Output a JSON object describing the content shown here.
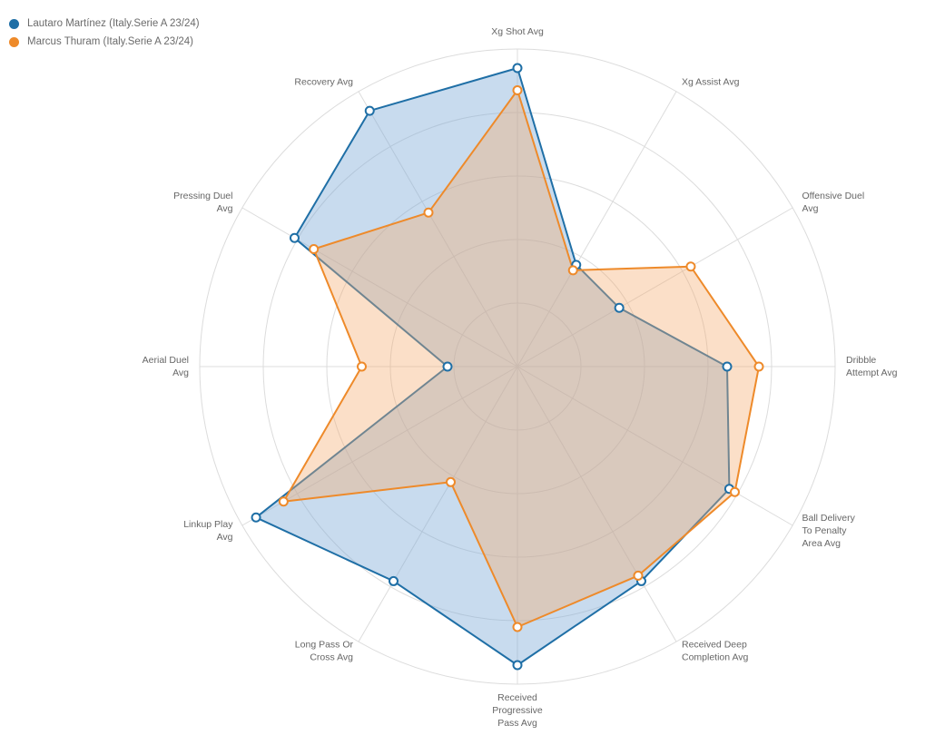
{
  "chart_data": {
    "type": "radar",
    "title": "",
    "axes": [
      "Xg Shot Avg",
      "Xg Assist Avg",
      "Offensive Duel Avg",
      "Dribble Attempt Avg",
      "Ball Delivery To Penalty Area Avg",
      "Received Deep Completion Avg",
      "Received Progressive Pass Avg",
      "Long Pass Or Cross Avg",
      "Linkup Play Avg",
      "Aerial Duel Avg",
      "Pressing Duel Avg",
      "Recovery Avg"
    ],
    "axis_label_lines": [
      [
        "Xg Shot Avg"
      ],
      [
        "Xg Assist Avg"
      ],
      [
        "Offensive Duel",
        "Avg"
      ],
      [
        "Dribble",
        "Attempt Avg"
      ],
      [
        "Ball Delivery",
        "To Penalty",
        "Area Avg"
      ],
      [
        "Received Deep",
        "Completion Avg"
      ],
      [
        "Received",
        "Progressive",
        "Pass Avg"
      ],
      [
        "Long Pass Or",
        "Cross Avg"
      ],
      [
        "Linkup Play",
        "Avg"
      ],
      [
        "Aerial Duel",
        "Avg"
      ],
      [
        "Pressing Duel",
        "Avg"
      ],
      [
        "Recovery Avg"
      ]
    ],
    "scale_max": 100,
    "rings": 5,
    "grid": true,
    "legend_position": "top-left",
    "series": [
      {
        "name": "Lautaro Martínez (Italy.Serie A 23/24)",
        "color": "#1f6fa6",
        "fill": "rgba(124,170,214,0.42)",
        "values": [
          94,
          37,
          37,
          66,
          77,
          78,
          94,
          78,
          95,
          22,
          81,
          93
        ]
      },
      {
        "name": "Marcus Thuram (Italy.Serie A 23/24)",
        "color": "#ee8a2a",
        "fill": "rgba(245,170,110,0.38)",
        "values": [
          87,
          35,
          63,
          76,
          79,
          76,
          82,
          42,
          85,
          49,
          74,
          56
        ]
      }
    ]
  }
}
